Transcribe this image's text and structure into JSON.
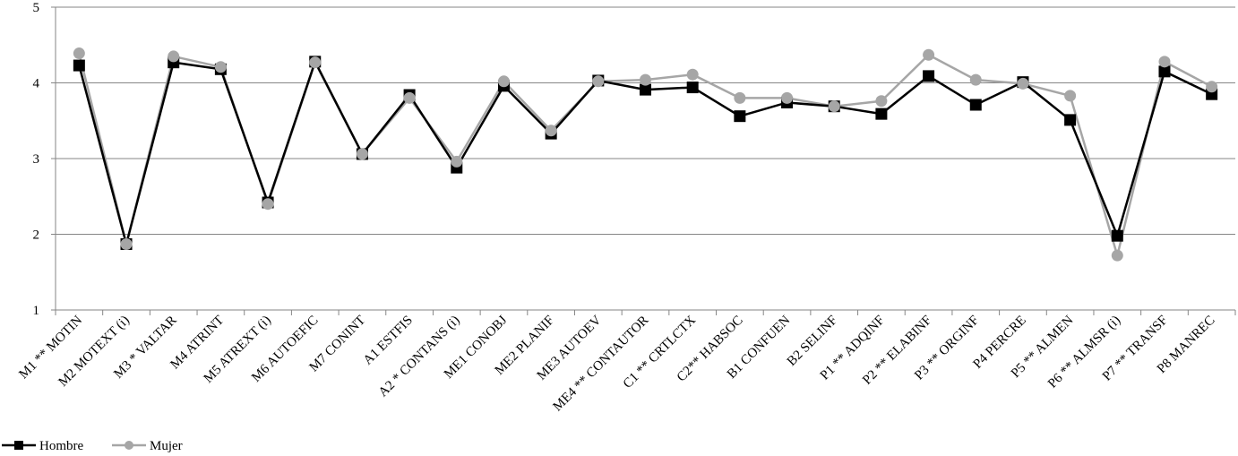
{
  "chart_data": {
    "type": "line",
    "title": "",
    "xlabel": "",
    "ylabel": "",
    "ylim": [
      1,
      5
    ],
    "yticks": [
      "1",
      "2",
      "3",
      "4",
      "5"
    ],
    "grid": true,
    "legend_position": "bottom-left",
    "categories": [
      "M1 ** MOTIN",
      "M2 MOTEXT (i)",
      "M3 * VALTAR",
      "M4 ATRINT",
      "M5 ATREXT (i)",
      "M6 AUTOEFIC",
      "M7 CONINT",
      "A1 ESTFIS",
      "A2 * CONTANS (i)",
      "ME1 CONOBJ",
      "ME2 PLANIF",
      "ME3 AUTOEV",
      "ME4 ** CONTAUTOR",
      "C1 ** CRTLCTX",
      "C2** HABSOC",
      "B1 CONFUEN",
      "B2 SELINF",
      "P1 ** ADQINF",
      "P2 ** ELABINF",
      "P3 ** ORGINF",
      "P4 PERCRE",
      "P5 ** ALMEN",
      "P6 ** ALMSR (i)",
      "P7 ** TRANSF",
      "P8 MANREC"
    ],
    "series": [
      {
        "name": "Hombre",
        "color": "#000000",
        "marker": "square",
        "values": [
          4.23,
          1.87,
          4.27,
          4.18,
          2.42,
          4.28,
          3.06,
          3.84,
          2.88,
          3.96,
          3.33,
          4.03,
          3.91,
          3.94,
          3.56,
          3.74,
          3.69,
          3.59,
          4.09,
          3.71,
          4.01,
          3.51,
          1.98,
          4.15,
          3.85
        ]
      },
      {
        "name": "Mujer",
        "color": "#a6a6a6",
        "marker": "circle",
        "values": [
          4.39,
          1.87,
          4.35,
          4.21,
          2.4,
          4.27,
          3.06,
          3.8,
          2.96,
          4.02,
          3.37,
          4.02,
          4.04,
          4.11,
          3.8,
          3.8,
          3.69,
          3.76,
          4.37,
          4.04,
          3.99,
          3.83,
          1.72,
          4.28,
          3.95
        ]
      }
    ]
  }
}
